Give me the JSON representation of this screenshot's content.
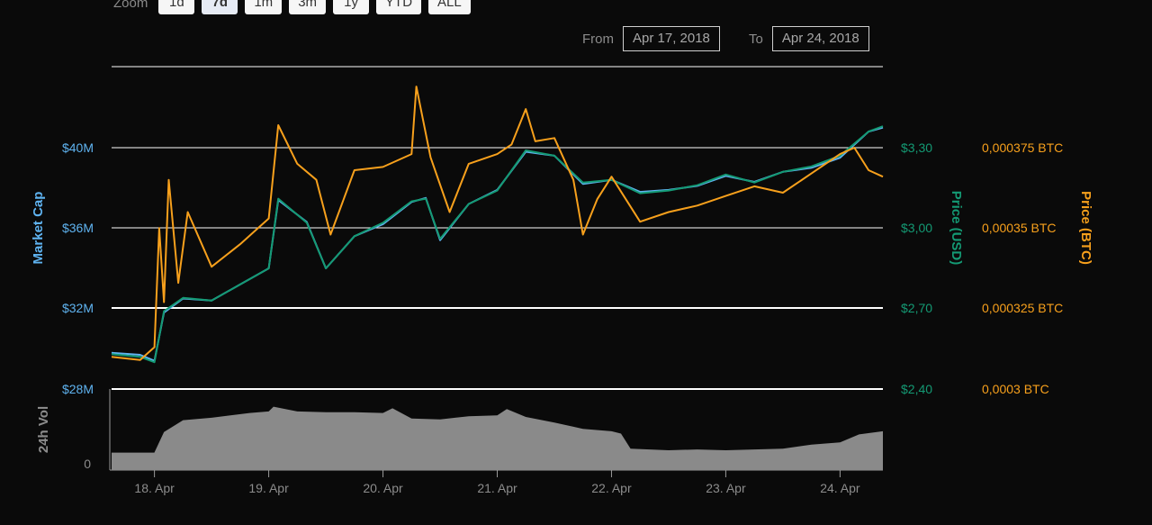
{
  "zoom": {
    "label": "Zoom",
    "buttons": [
      "1d",
      "7d",
      "1m",
      "3m",
      "1y",
      "YTD",
      "ALL"
    ],
    "active": "7d"
  },
  "range": {
    "from_label": "From",
    "from_value": "Apr 17, 2018",
    "to_label": "To",
    "to_value": "Apr 24, 2018"
  },
  "colors": {
    "market_cap": "#5fb3f0",
    "price_usd": "#149a74",
    "price_btc": "#f7a01c",
    "volume": "#8a8a8a",
    "grid": "#ffffff"
  },
  "chart_data": {
    "type": "line",
    "x_axis": {
      "start": "Apr 17, 2018 15:00",
      "end": "Apr 24, 2018 09:00",
      "tick_labels": [
        "18. Apr",
        "19. Apr",
        "20. Apr",
        "21. Apr",
        "22. Apr",
        "23. Apr",
        "24. Apr"
      ]
    },
    "axes": {
      "market_cap": {
        "title": "Market Cap",
        "ticks": [
          "$40M",
          "$36M",
          "$32M",
          "$28M"
        ],
        "range": [
          28,
          40
        ],
        "unit": "$M"
      },
      "price_usd": {
        "title": "Price (USD)",
        "ticks": [
          "$3,30",
          "$3,00",
          "$2,70",
          "$2,40"
        ],
        "range": [
          2.4,
          3.3
        ]
      },
      "price_btc": {
        "title": "Price (BTC)",
        "ticks": [
          "0,000375 BTC",
          "0,00035 BTC",
          "0,000325 BTC",
          "0,0003 BTC"
        ],
        "range": [
          0.0003,
          0.000375
        ]
      },
      "volume": {
        "title": "24h Vol",
        "ticks": [
          "0"
        ]
      }
    },
    "series": [
      {
        "name": "Market Cap",
        "axis": "market_cap",
        "points": [
          [
            "2018-04-17 15:00",
            29.8
          ],
          [
            "2018-04-17 21:00",
            29.7
          ],
          [
            "2018-04-18 00:00",
            29.4
          ],
          [
            "2018-04-18 02:00",
            31.8
          ],
          [
            "2018-04-18 06:00",
            32.5
          ],
          [
            "2018-04-18 12:00",
            32.4
          ],
          [
            "2018-04-18 18:00",
            33.2
          ],
          [
            "2018-04-19 00:00",
            34.0
          ],
          [
            "2018-04-19 02:00",
            37.4
          ],
          [
            "2018-04-19 08:00",
            36.3
          ],
          [
            "2018-04-19 12:00",
            34.0
          ],
          [
            "2018-04-19 18:00",
            35.6
          ],
          [
            "2018-04-20 00:00",
            36.2
          ],
          [
            "2018-04-20 06:00",
            37.3
          ],
          [
            "2018-04-20 09:00",
            37.5
          ],
          [
            "2018-04-20 12:00",
            35.4
          ],
          [
            "2018-04-20 18:00",
            37.2
          ],
          [
            "2018-04-21 00:00",
            37.9
          ],
          [
            "2018-04-21 06:00",
            39.8
          ],
          [
            "2018-04-21 12:00",
            39.6
          ],
          [
            "2018-04-21 18:00",
            38.2
          ],
          [
            "2018-04-22 00:00",
            38.4
          ],
          [
            "2018-04-22 06:00",
            37.8
          ],
          [
            "2018-04-22 12:00",
            37.9
          ],
          [
            "2018-04-22 18:00",
            38.1
          ],
          [
            "2018-04-23 00:00",
            38.6
          ],
          [
            "2018-04-23 06:00",
            38.3
          ],
          [
            "2018-04-23 12:00",
            38.8
          ],
          [
            "2018-04-23 18:00",
            39.0
          ],
          [
            "2018-04-24 00:00",
            39.5
          ],
          [
            "2018-04-24 06:00",
            40.8
          ],
          [
            "2018-04-24 09:00",
            41.0
          ]
        ]
      },
      {
        "name": "Price (USD)",
        "axis": "price_usd",
        "points": [
          [
            "2018-04-17 15:00",
            2.53
          ],
          [
            "2018-04-17 21:00",
            2.52
          ],
          [
            "2018-04-18 00:00",
            2.5
          ],
          [
            "2018-04-18 02:00",
            2.69
          ],
          [
            "2018-04-18 06:00",
            2.74
          ],
          [
            "2018-04-18 12:00",
            2.73
          ],
          [
            "2018-04-18 18:00",
            2.79
          ],
          [
            "2018-04-19 00:00",
            2.85
          ],
          [
            "2018-04-19 02:00",
            3.11
          ],
          [
            "2018-04-19 08:00",
            3.02
          ],
          [
            "2018-04-19 12:00",
            2.85
          ],
          [
            "2018-04-19 18:00",
            2.97
          ],
          [
            "2018-04-20 00:00",
            3.02
          ],
          [
            "2018-04-20 06:00",
            3.1
          ],
          [
            "2018-04-20 09:00",
            3.11
          ],
          [
            "2018-04-20 12:00",
            2.96
          ],
          [
            "2018-04-20 18:00",
            3.09
          ],
          [
            "2018-04-21 00:00",
            3.14
          ],
          [
            "2018-04-21 06:00",
            3.29
          ],
          [
            "2018-04-21 12:00",
            3.27
          ],
          [
            "2018-04-21 18:00",
            3.17
          ],
          [
            "2018-04-22 00:00",
            3.18
          ],
          [
            "2018-04-22 06:00",
            3.13
          ],
          [
            "2018-04-22 12:00",
            3.14
          ],
          [
            "2018-04-22 18:00",
            3.16
          ],
          [
            "2018-04-23 00:00",
            3.2
          ],
          [
            "2018-04-23 06:00",
            3.17
          ],
          [
            "2018-04-23 12:00",
            3.21
          ],
          [
            "2018-04-23 18:00",
            3.23
          ],
          [
            "2018-04-24 00:00",
            3.27
          ],
          [
            "2018-04-24 06:00",
            3.36
          ],
          [
            "2018-04-24 09:00",
            3.38
          ]
        ]
      },
      {
        "name": "Price (BTC)",
        "axis": "price_btc",
        "points": [
          [
            "2018-04-17 15:00",
            0.00031
          ],
          [
            "2018-04-17 21:00",
            0.000309
          ],
          [
            "2018-04-18 00:00",
            0.000313
          ],
          [
            "2018-04-18 01:00",
            0.00035
          ],
          [
            "2018-04-18 02:00",
            0.000327
          ],
          [
            "2018-04-18 03:00",
            0.000365
          ],
          [
            "2018-04-18 05:00",
            0.000333
          ],
          [
            "2018-04-18 07:00",
            0.000355
          ],
          [
            "2018-04-18 12:00",
            0.000338
          ],
          [
            "2018-04-18 18:00",
            0.000345
          ],
          [
            "2018-04-19 00:00",
            0.000353
          ],
          [
            "2018-04-19 02:00",
            0.000382
          ],
          [
            "2018-04-19 06:00",
            0.00037
          ],
          [
            "2018-04-19 10:00",
            0.000365
          ],
          [
            "2018-04-19 13:00",
            0.000348
          ],
          [
            "2018-04-19 18:00",
            0.000368
          ],
          [
            "2018-04-20 00:00",
            0.000369
          ],
          [
            "2018-04-20 06:00",
            0.000373
          ],
          [
            "2018-04-20 07:00",
            0.000394
          ],
          [
            "2018-04-20 10:00",
            0.000372
          ],
          [
            "2018-04-20 14:00",
            0.000355
          ],
          [
            "2018-04-20 18:00",
            0.00037
          ],
          [
            "2018-04-21 00:00",
            0.000373
          ],
          [
            "2018-04-21 03:00",
            0.000376
          ],
          [
            "2018-04-21 06:00",
            0.000387
          ],
          [
            "2018-04-21 08:00",
            0.000377
          ],
          [
            "2018-04-21 12:00",
            0.000378
          ],
          [
            "2018-04-21 16:00",
            0.000365
          ],
          [
            "2018-04-21 18:00",
            0.000348
          ],
          [
            "2018-04-21 21:00",
            0.000359
          ],
          [
            "2018-04-22 00:00",
            0.000366
          ],
          [
            "2018-04-22 06:00",
            0.000352
          ],
          [
            "2018-04-22 12:00",
            0.000355
          ],
          [
            "2018-04-22 18:00",
            0.000357
          ],
          [
            "2018-04-23 00:00",
            0.00036
          ],
          [
            "2018-04-23 06:00",
            0.000363
          ],
          [
            "2018-04-23 12:00",
            0.000361
          ],
          [
            "2018-04-23 18:00",
            0.000367
          ],
          [
            "2018-04-24 00:00",
            0.000373
          ],
          [
            "2018-04-24 03:00",
            0.000375
          ],
          [
            "2018-04-24 06:00",
            0.000368
          ],
          [
            "2018-04-24 09:00",
            0.000366
          ]
        ]
      },
      {
        "name": "24h Vol",
        "axis": "volume",
        "type": "area",
        "relative_level": [
          [
            "2018-04-17 15:00",
            0.22
          ],
          [
            "2018-04-17 23:59",
            0.22
          ],
          [
            "2018-04-18 02:00",
            0.48
          ],
          [
            "2018-04-18 06:00",
            0.63
          ],
          [
            "2018-04-18 12:00",
            0.66
          ],
          [
            "2018-04-18 20:00",
            0.72
          ],
          [
            "2018-04-19 00:00",
            0.74
          ],
          [
            "2018-04-19 01:00",
            0.8
          ],
          [
            "2018-04-19 06:00",
            0.74
          ],
          [
            "2018-04-19 12:00",
            0.73
          ],
          [
            "2018-04-19 18:00",
            0.73
          ],
          [
            "2018-04-20 00:00",
            0.72
          ],
          [
            "2018-04-20 02:00",
            0.78
          ],
          [
            "2018-04-20 06:00",
            0.65
          ],
          [
            "2018-04-20 12:00",
            0.64
          ],
          [
            "2018-04-20 18:00",
            0.68
          ],
          [
            "2018-04-21 00:00",
            0.69
          ],
          [
            "2018-04-21 02:00",
            0.77
          ],
          [
            "2018-04-21 06:00",
            0.67
          ],
          [
            "2018-04-21 12:00",
            0.6
          ],
          [
            "2018-04-21 18:00",
            0.52
          ],
          [
            "2018-04-22 00:00",
            0.49
          ],
          [
            "2018-04-22 02:00",
            0.46
          ],
          [
            "2018-04-22 04:00",
            0.27
          ],
          [
            "2018-04-22 12:00",
            0.25
          ],
          [
            "2018-04-22 18:00",
            0.26
          ],
          [
            "2018-04-23 00:00",
            0.25
          ],
          [
            "2018-04-23 12:00",
            0.27
          ],
          [
            "2018-04-23 18:00",
            0.32
          ],
          [
            "2018-04-24 00:00",
            0.35
          ],
          [
            "2018-04-24 04:00",
            0.45
          ],
          [
            "2018-04-24 09:00",
            0.49
          ]
        ]
      }
    ]
  }
}
